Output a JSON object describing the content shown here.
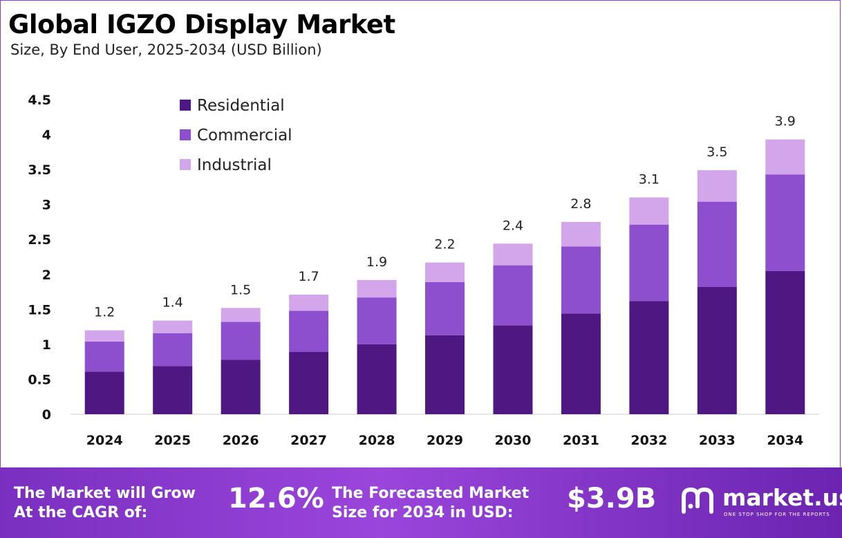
{
  "header": {
    "title": "Global IGZO Display Market",
    "subtitle": "Size, By End User, 2025-2034 (USD Billion)"
  },
  "footer": {
    "cagr_label_line1": "The Market will Grow",
    "cagr_label_line2": "At the CAGR of:",
    "cagr_value": "12.6%",
    "forecast_label_line1": "The Forecasted Market",
    "forecast_label_line2": "Size for 2034 in USD:",
    "forecast_value": "$3.9B",
    "brand_name": "market.us",
    "brand_tagline": "ONE STOP SHOP FOR THE REPORTS"
  },
  "colors": {
    "residential": "#4e1782",
    "commercial": "#8e4fcf",
    "industrial": "#d3a6ec",
    "footer_bg": "#8a3bd0"
  },
  "chart_data": {
    "type": "bar",
    "stacked": true,
    "title": "Global IGZO Display Market",
    "subtitle": "Size, By End User, 2025-2034 (USD Billion)",
    "categories": [
      "2024",
      "2025",
      "2026",
      "2027",
      "2028",
      "2029",
      "2030",
      "2031",
      "2032",
      "2033",
      "2034"
    ],
    "series": [
      {
        "name": "Residential",
        "values": [
          0.61,
          0.69,
          0.78,
          0.89,
          1.0,
          1.13,
          1.27,
          1.44,
          1.62,
          1.82,
          2.05
        ]
      },
      {
        "name": "Commercial",
        "values": [
          0.43,
          0.47,
          0.54,
          0.59,
          0.67,
          0.76,
          0.86,
          0.96,
          1.09,
          1.22,
          1.38
        ]
      },
      {
        "name": "Industrial",
        "values": [
          0.16,
          0.18,
          0.2,
          0.23,
          0.25,
          0.28,
          0.31,
          0.35,
          0.39,
          0.45,
          0.5
        ]
      }
    ],
    "totals": [
      "1.2",
      "1.4",
      "1.5",
      "1.7",
      "1.9",
      "2.2",
      "2.4",
      "2.8",
      "3.1",
      "3.5",
      "3.9"
    ],
    "yticks": [
      "0",
      "0.5",
      "1",
      "1.5",
      "2",
      "2.5",
      "3",
      "3.5",
      "4",
      "4.5"
    ],
    "ylim": [
      0,
      4.5
    ],
    "grid": false,
    "legend_position": "top-left"
  }
}
